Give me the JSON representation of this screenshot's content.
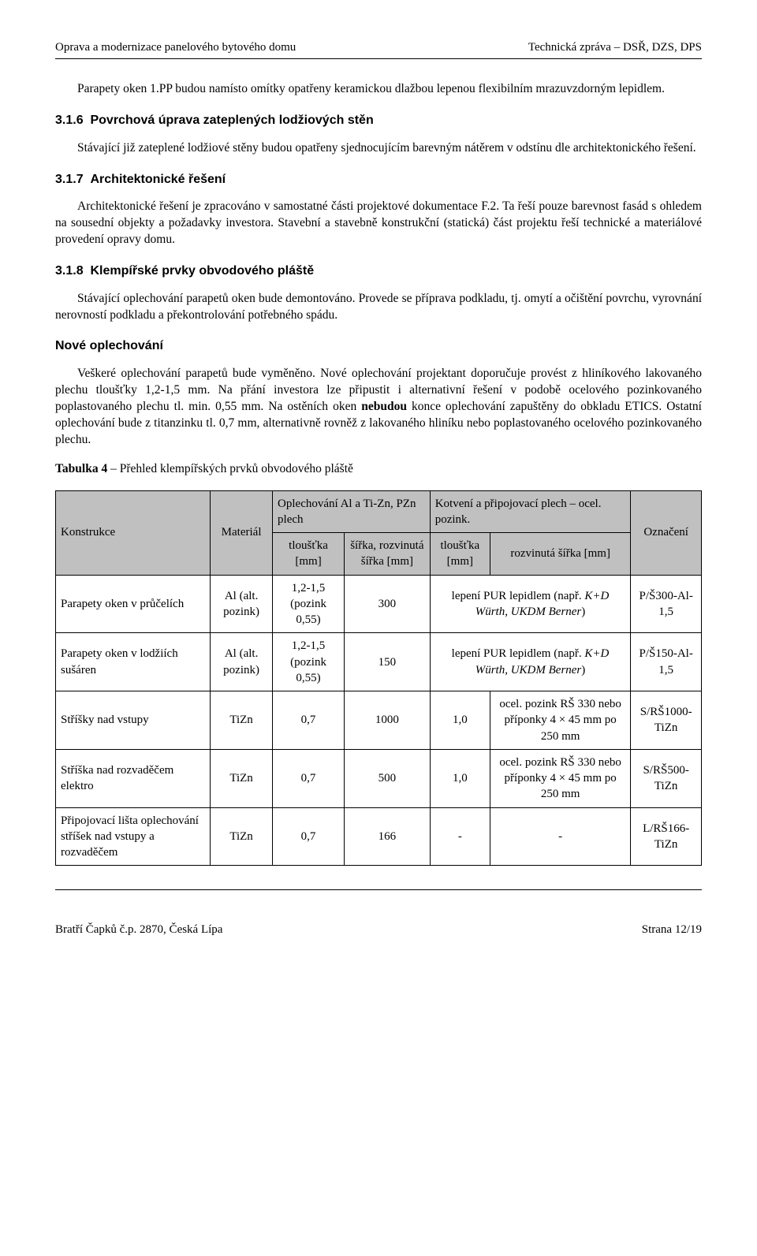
{
  "header": {
    "left": "Oprava a modernizace panelového bytového domu",
    "right": "Technická zpráva – DSŘ, DZS, DPS"
  },
  "p1_prefix": "Parapety oken 1.PP budou namísto omítky opatřeny keramickou dlažbou lepenou flexibilním mrazuvzdorným lepidlem.",
  "s316": {
    "num": "3.1.6",
    "title": "Povrchová úprava zateplených lodžiových stěn",
    "p": "Stávající již zateplené lodžiové stěny budou opatřeny sjednocujícím barevným nátěrem v odstínu dle architektonického řešení."
  },
  "s317": {
    "num": "3.1.7",
    "title": "Architektonické řešení",
    "p": "Architektonické řešení je zpracováno v samostatné části projektové dokumentace F.2. Ta řeší pouze barevnost fasád s ohledem na sousední objekty a požadavky investora. Stavební a stavebně konstrukční (statická) část projektu řeší technické a materiálové provedení opravy domu."
  },
  "s318": {
    "num": "3.1.8",
    "title": "Klempířské prvky obvodového pláště",
    "p1": "Stávající oplechování parapetů oken bude demontováno. Provede se příprava podkladu, tj. omytí a očištění povrchu, vyrovnání nerovností podkladu a překontrolování potřebného spádu.",
    "h4": "Nové oplechování",
    "p2a": "Veškeré oplechování parapetů bude vyměněno. Nové oplechování projektant doporučuje provést z hliníkového lakovaného plechu tloušťky 1,2-1,5 mm. Na přání investora lze připustit i alternativní řešení v podobě ocelového pozinkovaného poplastovaného plechu tl. min. 0,55 mm. Na ostěních oken ",
    "p2bold": "nebudou",
    "p2b": " konce oplechování zapuštěny do obkladu ETICS. Ostatní oplechování bude z titanzinku tl. 0,7 mm, alternativně rovněž z lakovaného hliníku nebo poplastovaného ocelového pozinkovaného plechu."
  },
  "table": {
    "caption_bold": "Tabulka 4",
    "caption_rest": " – Přehled  klempířských prvků obvodového pláště",
    "head": {
      "c1": "Konstrukce",
      "c2": "Materiál",
      "g1": "Oplechování Al a Ti-Zn, PZn plech",
      "g2": "Kotvení a připojovací plech – ocel. pozink.",
      "c3": "tloušťka [mm]",
      "c4": "šířka, rozvinutá šířka [mm]",
      "c5": "tloušťka [mm]",
      "c6": "rozvinutá šířka [mm]",
      "c7": "Označení"
    },
    "rows": [
      {
        "konstrukce": "Parapety oken v průčelích",
        "material": "Al (alt. pozink)",
        "tl": "1,2-1,5 (pozink 0,55)",
        "sirka": "300",
        "kot_plain": "lepení PUR lepidlem (např.",
        "kot_italic": "K+D Würth, UKDM Berner",
        "kot_tail": ")",
        "ozn": "P/Š300-Al-1,5"
      },
      {
        "konstrukce": "Parapety oken v lodžiích sušáren",
        "material": "Al (alt. pozink)",
        "tl": "1,2-1,5 (pozink 0,55)",
        "sirka": "150",
        "kot_plain": "lepení PUR lepidlem (např.",
        "kot_italic": "K+D Würth, UKDM Berner",
        "kot_tail": ")",
        "ozn": "P/Š150-Al-1,5"
      },
      {
        "konstrukce": "Stříšky nad vstupy",
        "material": "TiZn",
        "tl": "0,7",
        "sirka": "1000",
        "kot_tl": "1,0",
        "kot_s": "ocel. pozink RŠ 330 nebo příponky 4 × 45 mm po 250 mm",
        "ozn": "S/RŠ1000-TiZn"
      },
      {
        "konstrukce": "Stříška nad rozvaděčem elektro",
        "material": "TiZn",
        "tl": "0,7",
        "sirka": "500",
        "kot_tl": "1,0",
        "kot_s": "ocel. pozink RŠ 330 nebo příponky 4 × 45 mm po 250 mm",
        "ozn": "S/RŠ500-TiZn"
      },
      {
        "konstrukce": "Připojovací lišta oplechování stříšek nad vstupy a rozvaděčem",
        "material": "TiZn",
        "tl": "0,7",
        "sirka": "166",
        "kot_tl": "-",
        "kot_s": "-",
        "ozn": "L/RŠ166-TiZn"
      }
    ]
  },
  "footer": {
    "left": "Bratří Čapků č.p. 2870, Česká Lípa",
    "right": "Strana 12/19"
  },
  "colors": {
    "header_bg": "#c0c0c0",
    "text": "#000000",
    "page_bg": "#ffffff"
  }
}
